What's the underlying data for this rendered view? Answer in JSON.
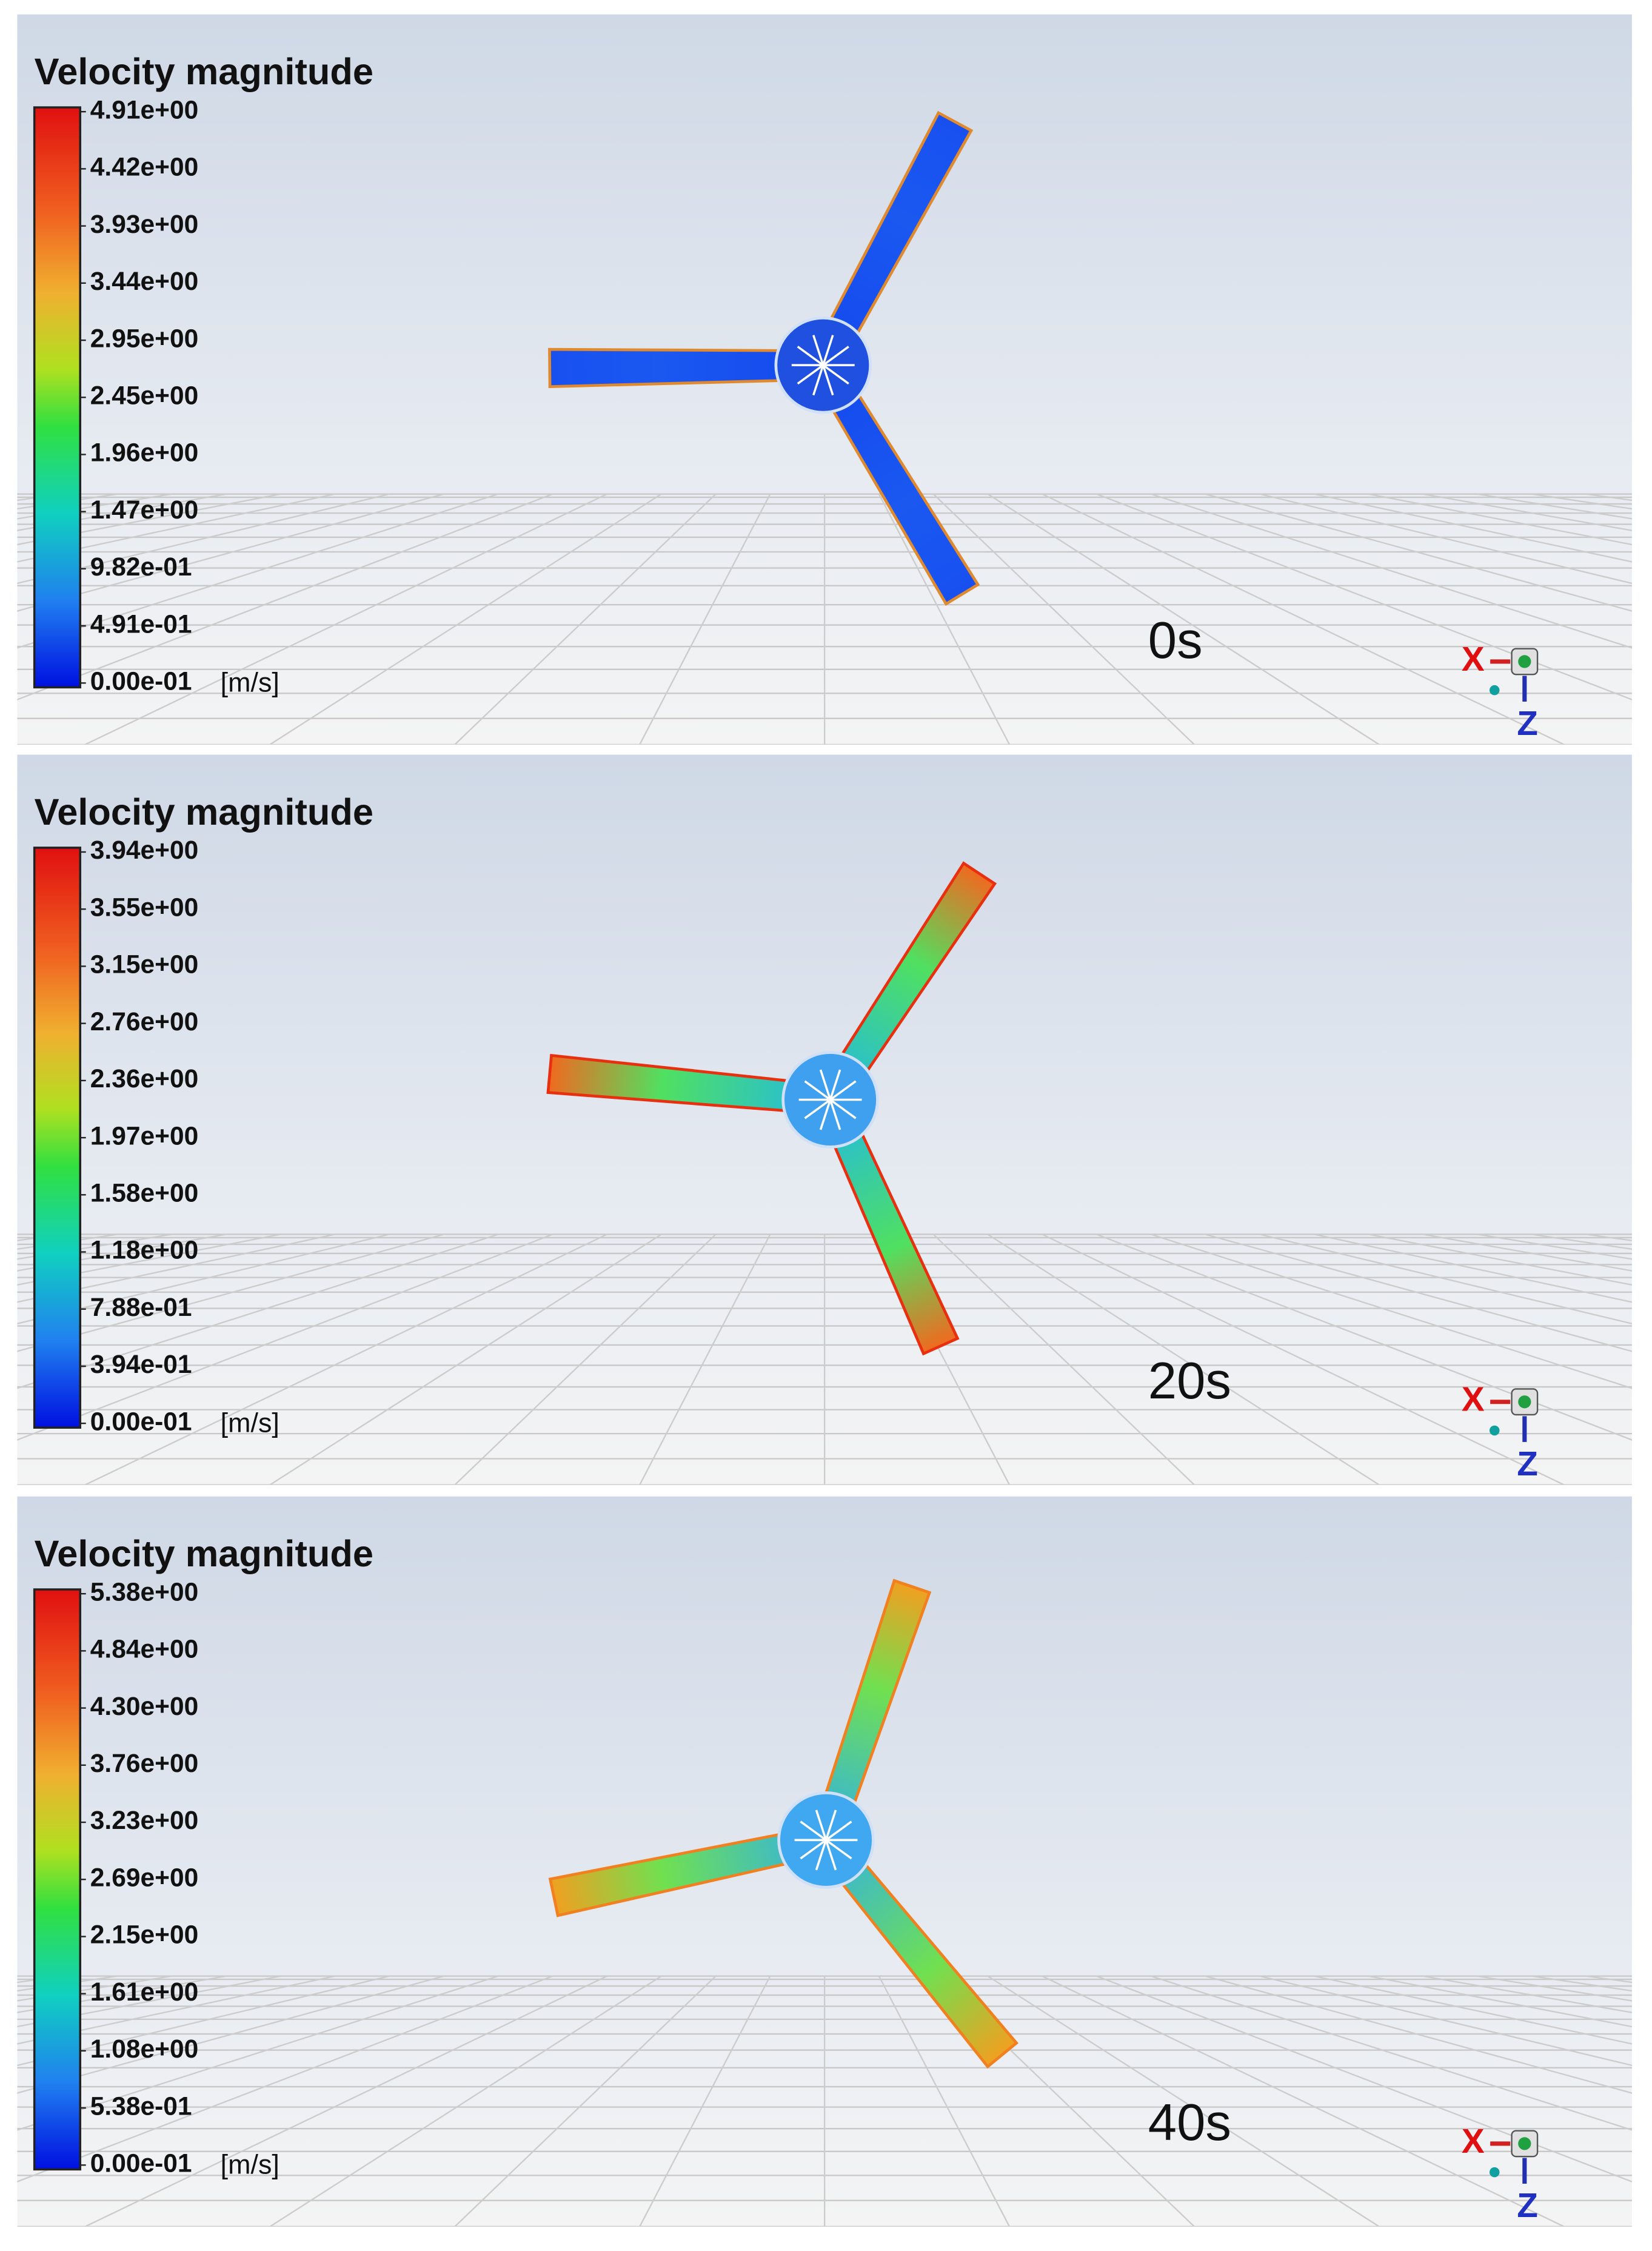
{
  "panels": [
    {
      "title": "Velocity magnitude",
      "legend_labels": [
        "4.91e+00",
        "4.42e+00",
        "3.93e+00",
        "3.44e+00",
        "2.95e+00",
        "2.45e+00",
        "1.96e+00",
        "1.47e+00",
        "9.82e-01",
        "4.91e-01",
        "0.00e-01"
      ],
      "unit": "[m/s]",
      "time": "0s",
      "axis_x": "X",
      "axis_z": "Z"
    },
    {
      "title": "Velocity magnitude",
      "legend_labels": [
        "3.94e+00",
        "3.55e+00",
        "3.15e+00",
        "2.76e+00",
        "2.36e+00",
        "1.97e+00",
        "1.58e+00",
        "1.18e+00",
        "7.88e-01",
        "3.94e-01",
        "0.00e-01"
      ],
      "unit": "[m/s]",
      "time": "20s",
      "axis_x": "X",
      "axis_z": "Z"
    },
    {
      "title": "Velocity magnitude",
      "legend_labels": [
        "5.38e+00",
        "4.84e+00",
        "4.30e+00",
        "3.76e+00",
        "3.23e+00",
        "2.69e+00",
        "2.15e+00",
        "1.61e+00",
        "1.08e+00",
        "5.38e-01",
        "0.00e-01"
      ],
      "unit": "[m/s]",
      "time": "40s",
      "axis_x": "X",
      "axis_z": "Z"
    }
  ]
}
